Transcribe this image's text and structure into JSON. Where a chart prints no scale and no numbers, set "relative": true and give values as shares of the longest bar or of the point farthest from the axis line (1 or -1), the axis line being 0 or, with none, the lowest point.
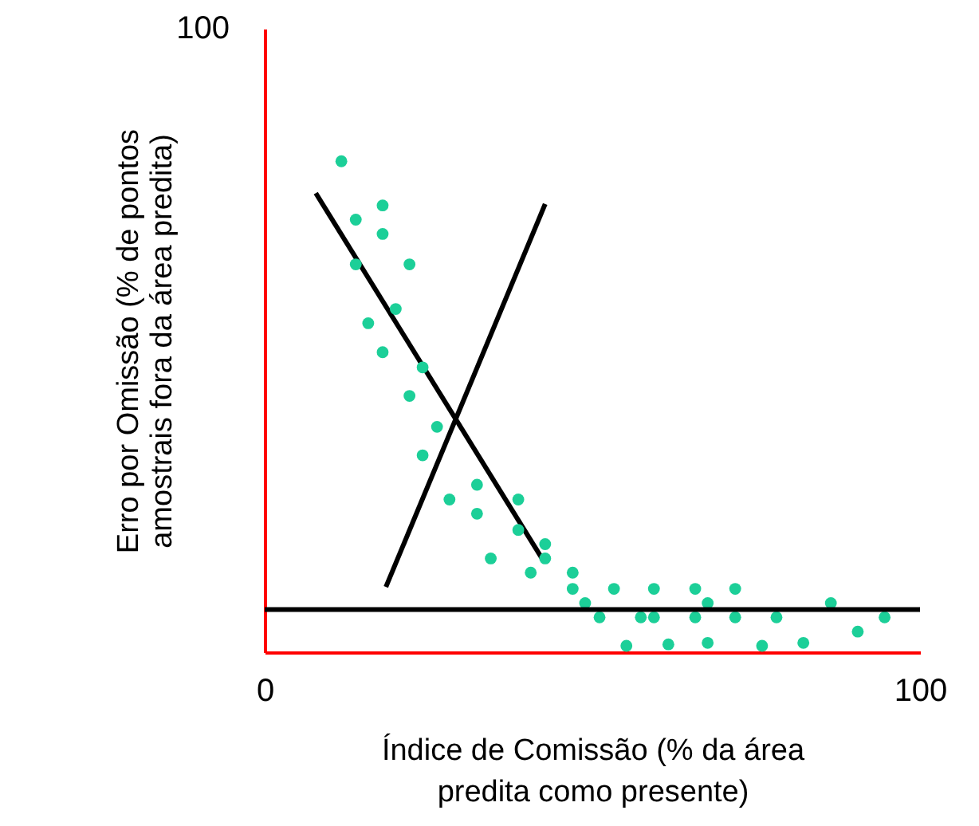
{
  "chart_data": {
    "type": "scatter",
    "relative": true,
    "xlabel": "Índice de Comissão (% da área\npredita como presente)",
    "ylabel": "Erro por Omissão (% de pontos\namostrais fora da área predita)",
    "xlim": [
      0,
      100
    ],
    "xticks": [
      0,
      100
    ],
    "grid": false,
    "marker": "circle",
    "annotations": [
      "100"
    ],
    "series": [
      {
        "color": "#1ccf98",
        "x": [
          11.7,
          18.0,
          13.9,
          18.0,
          13.9,
          22.1,
          20.0,
          15.8,
          18.0,
          24.1,
          22.1,
          26.3,
          24.1,
          28.2,
          32.4,
          32.4,
          38.7,
          38.7,
          34.5,
          42.8,
          42.8,
          40.6,
          47.0,
          47.0,
          53.3,
          59.4,
          65.7,
          71.8,
          48.9,
          67.6,
          86.4,
          51.1,
          57.4,
          59.4,
          65.7,
          71.8,
          78.1,
          94.6,
          90.5,
          55.2,
          61.6,
          67.6,
          75.9,
          82.2
        ],
        "values": [
          1,
          0.91,
          0.881,
          0.852,
          0.79,
          0.79,
          0.699,
          0.67,
          0.611,
          0.58,
          0.522,
          0.459,
          0.401,
          0.311,
          0.341,
          0.282,
          0.311,
          0.249,
          0.191,
          0.22,
          0.191,
          0.162,
          0.162,
          0.129,
          0.129,
          0.129,
          0.129,
          0.129,
          0.1,
          0.1,
          0.1,
          0.071,
          0.071,
          0.071,
          0.071,
          0.071,
          0.071,
          0.071,
          0.042,
          0.013,
          0.016,
          0.019,
          0.013,
          0.019
        ]
      },
      {
        "type": "line",
        "marker": "none",
        "color": "#000000",
        "x": [
          7.8,
          42.6
        ],
        "values": [
          0.935,
          0.185
        ]
      },
      {
        "type": "line",
        "marker": "none",
        "color": "#000000",
        "x": [
          18.5,
          42.8
        ],
        "values": [
          0.133,
          0.913
        ]
      }
    ],
    "ref_lines": [
      {
        "axis": "y",
        "value": 0.087,
        "color": "#000000",
        "line_style": "solid"
      }
    ]
  }
}
